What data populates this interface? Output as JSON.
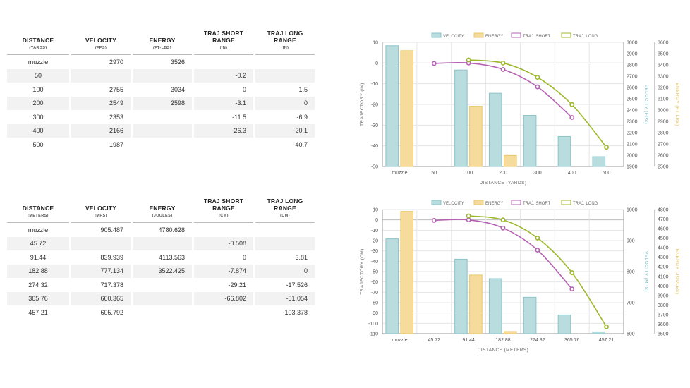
{
  "tables": [
    {
      "headers": [
        {
          "title": "DISTANCE",
          "unit": "(YARDS)"
        },
        {
          "title": "VELOCITY",
          "unit": "(FPS)"
        },
        {
          "title": "ENERGY",
          "unit": "(FT-LBS)"
        },
        {
          "title": "TRAJ SHORT RANGE",
          "unit": "(IN)"
        },
        {
          "title": "TRAJ LONG RANGE",
          "unit": "(IN)"
        }
      ],
      "rows": [
        [
          "muzzle",
          "2970",
          "3526",
          "",
          ""
        ],
        [
          "50",
          "",
          "",
          "-0.2",
          ""
        ],
        [
          "100",
          "2755",
          "3034",
          "0",
          "1.5"
        ],
        [
          "200",
          "2549",
          "2598",
          "-3.1",
          "0"
        ],
        [
          "300",
          "2353",
          "",
          "-11.5",
          "-6.9"
        ],
        [
          "400",
          "2166",
          "",
          "-26.3",
          "-20.1"
        ],
        [
          "500",
          "1987",
          "",
          "",
          "-40.7"
        ]
      ]
    },
    {
      "headers": [
        {
          "title": "DISTANCE",
          "unit": "(METERS)"
        },
        {
          "title": "VELOCITY",
          "unit": "(MPS)"
        },
        {
          "title": "ENERGY",
          "unit": "(JOULES)"
        },
        {
          "title": "TRAJ SHORT RANGE",
          "unit": "(CM)"
        },
        {
          "title": "TRAJ LONG RANGE",
          "unit": "(CM)"
        }
      ],
      "rows": [
        [
          "muzzle",
          "905.487",
          "4780.628",
          "",
          ""
        ],
        [
          "45.72",
          "",
          "",
          "-0.508",
          ""
        ],
        [
          "91.44",
          "839.939",
          "4113.563",
          "0",
          "3.81"
        ],
        [
          "182.88",
          "777.134",
          "3522.425",
          "-7.874",
          "0"
        ],
        [
          "274.32",
          "717.378",
          "",
          "-29.21",
          "-17.526"
        ],
        [
          "365.76",
          "660.365",
          "",
          "-66.802",
          "-51.054"
        ],
        [
          "457.21",
          "605.792",
          "",
          "",
          "-103.378"
        ]
      ]
    }
  ],
  "chart_data": [
    {
      "type": "bar",
      "categories": [
        "muzzle",
        "50",
        "100",
        "200",
        "300",
        "400",
        "500"
      ],
      "legend": [
        "VELOCITY",
        "ENERGY",
        "TRAJ. SHORT",
        "TRAJ. LONG"
      ],
      "xlabel": "DISTANCE (YARDS)",
      "ylabel_left": "TRAJECTORY (IN)",
      "ylabel_v": "VELOCITY (FPS)",
      "ylabel_e": "ENERGY (FT-LBS)",
      "ylim": [
        -50,
        10
      ],
      "yticks": [
        10,
        0,
        -10,
        -20,
        -30,
        -40,
        -50
      ],
      "vlim": [
        1900,
        3000
      ],
      "vticks": [
        3000,
        2900,
        2800,
        2700,
        2600,
        2500,
        2400,
        2300,
        2200,
        2100,
        2000,
        1900
      ],
      "elim": [
        2500,
        3600
      ],
      "eticks": [
        3600,
        3500,
        3400,
        3300,
        3200,
        3100,
        3000,
        2900,
        2800,
        2700,
        2600,
        2500
      ],
      "series": [
        {
          "name": "VELOCITY",
          "values": [
            2970,
            null,
            2755,
            2549,
            2353,
            2166,
            1987
          ]
        },
        {
          "name": "ENERGY",
          "values": [
            3526,
            null,
            3034,
            2598,
            null,
            null,
            null
          ]
        },
        {
          "name": "TRAJ. SHORT",
          "values": [
            null,
            -0.2,
            0,
            -3.1,
            -11.5,
            -26.3,
            null
          ]
        },
        {
          "name": "TRAJ. LONG",
          "values": [
            null,
            null,
            1.5,
            0,
            -6.9,
            -20.1,
            -40.7
          ]
        }
      ]
    },
    {
      "type": "bar",
      "categories": [
        "muzzle",
        "45.72",
        "91.44",
        "182.88",
        "274.32",
        "365.76",
        "457.21"
      ],
      "legend": [
        "VELOCITY",
        "ENERGY",
        "TRAJ. SHORT",
        "TRAJ. LONG"
      ],
      "xlabel": "DISTANCE (METERS)",
      "ylabel_left": "TRAJECTORY (CM)",
      "ylabel_v": "VELOCITY (MPS)",
      "ylabel_e": "ENERGY (JOULES)",
      "ylim": [
        -110,
        10
      ],
      "yticks": [
        10,
        0,
        -10,
        -20,
        -30,
        -40,
        -50,
        -60,
        -70,
        -80,
        -90,
        -100,
        -110
      ],
      "vlim": [
        600,
        1000
      ],
      "vticks": [
        1000,
        900,
        800,
        700,
        600
      ],
      "elim": [
        3500,
        4800
      ],
      "eticks": [
        4800,
        4700,
        4600,
        4500,
        4400,
        4300,
        4200,
        4100,
        4000,
        3900,
        3800,
        3700,
        3600,
        3500
      ],
      "series": [
        {
          "name": "VELOCITY",
          "values": [
            905.487,
            null,
            839.939,
            777.134,
            717.378,
            660.365,
            605.792
          ]
        },
        {
          "name": "ENERGY",
          "values": [
            4780.628,
            null,
            4113.563,
            3522.425,
            null,
            null,
            null
          ]
        },
        {
          "name": "TRAJ. SHORT",
          "values": [
            null,
            -0.508,
            0,
            -7.874,
            -29.21,
            -66.802,
            null
          ]
        },
        {
          "name": "TRAJ. LONG",
          "values": [
            null,
            null,
            3.81,
            0,
            -17.526,
            -51.054,
            -103.378
          ]
        }
      ]
    }
  ],
  "colors": {
    "velocity_fill": "#b9dcdf",
    "velocity_stroke": "#8cc4c8",
    "energy_fill": "#f6dc9c",
    "energy_stroke": "#e9c76b",
    "short": "#b561b3",
    "long": "#9cb82a",
    "axis_v": "#7fc3c8",
    "axis_e": "#e5c558",
    "grid": "#e6e6e6"
  }
}
